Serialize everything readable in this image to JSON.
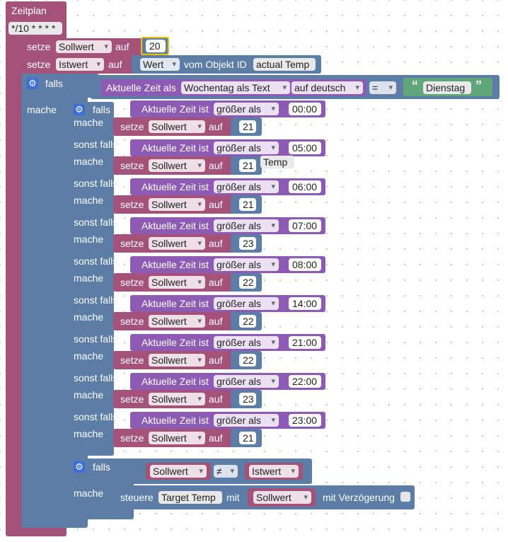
{
  "schedule": {
    "title": "Zeitplan",
    "cron": "*/10 * * * *"
  },
  "labels": {
    "setze": "setze",
    "auf": "auf",
    "falls": "falls",
    "mache": "mache",
    "sonst_falls": "sonst falls",
    "vom_objekt_id": "vom Objekt ID",
    "aktuelle_zeit_als": "Aktuelle Zeit als",
    "aktuelle_zeit_ist": "Aktuelle Zeit ist",
    "steuere": "steuere",
    "mit": "mit",
    "mit_verzoegerung": "mit Verzögerung",
    "open_quote": "“",
    "close_quote": "”"
  },
  "init": {
    "sollwert_var": "Sollwert",
    "sollwert_value": "20",
    "istwert_var": "Istwert",
    "wert_dd": "Wert",
    "object_id": "actual Temp"
  },
  "outer_if": {
    "format_dd": "Wochentag als Text",
    "lang_dd": "auf deutsch",
    "op_dd": "=",
    "day": "Dienstag"
  },
  "rules": [
    {
      "compare": "größer als",
      "time": "00:00",
      "var": "Sollwert",
      "value": "21"
    },
    {
      "compare": "größer als",
      "time": "05:00",
      "var": "Sollwert",
      "value": "21"
    },
    {
      "compare": "größer als",
      "time": "06:00",
      "var": "Sollwert",
      "value": "21"
    },
    {
      "compare": "größer als",
      "time": "07:00",
      "var": "Sollwert",
      "value": "23"
    },
    {
      "compare": "größer als",
      "time": "08:00",
      "var": "Sollwert",
      "value": "22"
    },
    {
      "compare": "größer als",
      "time": "14:00",
      "var": "Sollwert",
      "value": "22"
    },
    {
      "compare": "größer als",
      "time": "21:00",
      "var": "Sollwert",
      "value": "22"
    },
    {
      "compare": "größer als",
      "time": "22:00",
      "var": "Sollwert",
      "value": "23"
    },
    {
      "compare": "größer als",
      "time": "23:00",
      "var": "Sollwert",
      "value": "21"
    }
  ],
  "overlap_hint": "Temp",
  "final_if": {
    "left_var": "Sollwert",
    "op": "≠",
    "right_var": "Istwert",
    "target": "Target Temp",
    "value_var": "Sollwert"
  }
}
